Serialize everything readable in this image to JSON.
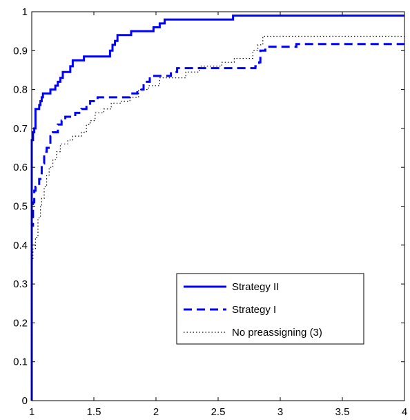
{
  "chart_data": {
    "type": "line",
    "title": "",
    "xlabel": "",
    "ylabel": "",
    "xlim": [
      1,
      4
    ],
    "ylim": [
      0,
      1
    ],
    "grid": false,
    "legend_position": "bottom-right",
    "x_ticks": [
      "1",
      "1.5",
      "2",
      "2.5",
      "3",
      "3.5",
      "4"
    ],
    "y_ticks": [
      "0",
      "0.1",
      "0.2",
      "0.3",
      "0.4",
      "0.5",
      "0.6",
      "0.7",
      "0.8",
      "0.9",
      "1"
    ],
    "series": [
      {
        "name": "Strategy II",
        "color": "#0000ff",
        "style": "solid",
        "points": [
          [
            1.0,
            0.0
          ],
          [
            1.0,
            0.67
          ],
          [
            1.01,
            0.67
          ],
          [
            1.01,
            0.69
          ],
          [
            1.02,
            0.69
          ],
          [
            1.02,
            0.7
          ],
          [
            1.03,
            0.7
          ],
          [
            1.03,
            0.75
          ],
          [
            1.06,
            0.75
          ],
          [
            1.06,
            0.76
          ],
          [
            1.07,
            0.76
          ],
          [
            1.07,
            0.77
          ],
          [
            1.08,
            0.77
          ],
          [
            1.08,
            0.78
          ],
          [
            1.09,
            0.78
          ],
          [
            1.09,
            0.79
          ],
          [
            1.15,
            0.79
          ],
          [
            1.15,
            0.8
          ],
          [
            1.19,
            0.8
          ],
          [
            1.19,
            0.81
          ],
          [
            1.21,
            0.81
          ],
          [
            1.21,
            0.82
          ],
          [
            1.23,
            0.82
          ],
          [
            1.23,
            0.83
          ],
          [
            1.25,
            0.83
          ],
          [
            1.25,
            0.845
          ],
          [
            1.31,
            0.845
          ],
          [
            1.31,
            0.86
          ],
          [
            1.33,
            0.86
          ],
          [
            1.33,
            0.875
          ],
          [
            1.42,
            0.875
          ],
          [
            1.42,
            0.885
          ],
          [
            1.63,
            0.885
          ],
          [
            1.63,
            0.9
          ],
          [
            1.65,
            0.9
          ],
          [
            1.65,
            0.915
          ],
          [
            1.67,
            0.915
          ],
          [
            1.67,
            0.925
          ],
          [
            1.69,
            0.925
          ],
          [
            1.69,
            0.94
          ],
          [
            1.8,
            0.94
          ],
          [
            1.8,
            0.95
          ],
          [
            1.98,
            0.95
          ],
          [
            1.98,
            0.96
          ],
          [
            2.03,
            0.96
          ],
          [
            2.03,
            0.97
          ],
          [
            2.07,
            0.97
          ],
          [
            2.07,
            0.98
          ],
          [
            2.62,
            0.98
          ],
          [
            2.62,
            0.99
          ],
          [
            4.0,
            0.99
          ]
        ]
      },
      {
        "name": "Strategy I",
        "color": "#0000ff",
        "style": "dashed",
        "points": [
          [
            1.0,
            0.0
          ],
          [
            1.0,
            0.45
          ],
          [
            1.01,
            0.45
          ],
          [
            1.01,
            0.51
          ],
          [
            1.02,
            0.51
          ],
          [
            1.02,
            0.54
          ],
          [
            1.03,
            0.54
          ],
          [
            1.03,
            0.55
          ],
          [
            1.06,
            0.55
          ],
          [
            1.06,
            0.57
          ],
          [
            1.08,
            0.57
          ],
          [
            1.08,
            0.61
          ],
          [
            1.1,
            0.61
          ],
          [
            1.1,
            0.64
          ],
          [
            1.12,
            0.64
          ],
          [
            1.12,
            0.65
          ],
          [
            1.15,
            0.65
          ],
          [
            1.15,
            0.68
          ],
          [
            1.17,
            0.68
          ],
          [
            1.17,
            0.69
          ],
          [
            1.21,
            0.69
          ],
          [
            1.21,
            0.71
          ],
          [
            1.24,
            0.71
          ],
          [
            1.24,
            0.72
          ],
          [
            1.27,
            0.72
          ],
          [
            1.27,
            0.73
          ],
          [
            1.35,
            0.73
          ],
          [
            1.35,
            0.74
          ],
          [
            1.4,
            0.74
          ],
          [
            1.4,
            0.75
          ],
          [
            1.44,
            0.75
          ],
          [
            1.44,
            0.76
          ],
          [
            1.47,
            0.76
          ],
          [
            1.47,
            0.77
          ],
          [
            1.53,
            0.77
          ],
          [
            1.53,
            0.78
          ],
          [
            1.79,
            0.78
          ],
          [
            1.79,
            0.79
          ],
          [
            1.85,
            0.79
          ],
          [
            1.85,
            0.8
          ],
          [
            1.9,
            0.8
          ],
          [
            1.9,
            0.82
          ],
          [
            1.95,
            0.82
          ],
          [
            1.95,
            0.835
          ],
          [
            2.12,
            0.835
          ],
          [
            2.12,
            0.845
          ],
          [
            2.17,
            0.845
          ],
          [
            2.17,
            0.855
          ],
          [
            2.8,
            0.855
          ],
          [
            2.8,
            0.86
          ],
          [
            2.83,
            0.86
          ],
          [
            2.83,
            0.87
          ],
          [
            2.84,
            0.87
          ],
          [
            2.84,
            0.9
          ],
          [
            2.88,
            0.9
          ],
          [
            2.88,
            0.91
          ],
          [
            3.13,
            0.91
          ],
          [
            3.13,
            0.917
          ],
          [
            4.0,
            0.917
          ]
        ]
      },
      {
        "name": "No preassigning (3)",
        "color": "#000000",
        "style": "dotted",
        "points": [
          [
            1.0,
            0.0
          ],
          [
            1.0,
            0.36
          ],
          [
            1.01,
            0.36
          ],
          [
            1.01,
            0.39
          ],
          [
            1.03,
            0.39
          ],
          [
            1.03,
            0.42
          ],
          [
            1.05,
            0.42
          ],
          [
            1.05,
            0.47
          ],
          [
            1.07,
            0.47
          ],
          [
            1.07,
            0.5
          ],
          [
            1.08,
            0.5
          ],
          [
            1.08,
            0.52
          ],
          [
            1.1,
            0.52
          ],
          [
            1.1,
            0.55
          ],
          [
            1.12,
            0.55
          ],
          [
            1.12,
            0.58
          ],
          [
            1.14,
            0.58
          ],
          [
            1.14,
            0.6
          ],
          [
            1.17,
            0.6
          ],
          [
            1.17,
            0.62
          ],
          [
            1.2,
            0.62
          ],
          [
            1.2,
            0.64
          ],
          [
            1.23,
            0.64
          ],
          [
            1.23,
            0.66
          ],
          [
            1.29,
            0.66
          ],
          [
            1.29,
            0.67
          ],
          [
            1.33,
            0.67
          ],
          [
            1.33,
            0.68
          ],
          [
            1.4,
            0.68
          ],
          [
            1.4,
            0.69
          ],
          [
            1.44,
            0.69
          ],
          [
            1.44,
            0.71
          ],
          [
            1.47,
            0.71
          ],
          [
            1.47,
            0.72
          ],
          [
            1.51,
            0.72
          ],
          [
            1.51,
            0.74
          ],
          [
            1.58,
            0.74
          ],
          [
            1.58,
            0.75
          ],
          [
            1.64,
            0.75
          ],
          [
            1.64,
            0.765
          ],
          [
            1.72,
            0.765
          ],
          [
            1.72,
            0.77
          ],
          [
            1.79,
            0.77
          ],
          [
            1.79,
            0.78
          ],
          [
            1.86,
            0.78
          ],
          [
            1.86,
            0.8
          ],
          [
            1.94,
            0.8
          ],
          [
            1.94,
            0.81
          ],
          [
            2.03,
            0.81
          ],
          [
            2.03,
            0.83
          ],
          [
            2.24,
            0.83
          ],
          [
            2.24,
            0.845
          ],
          [
            2.35,
            0.845
          ],
          [
            2.35,
            0.86
          ],
          [
            2.53,
            0.86
          ],
          [
            2.53,
            0.87
          ],
          [
            2.63,
            0.87
          ],
          [
            2.63,
            0.88
          ],
          [
            2.78,
            0.88
          ],
          [
            2.78,
            0.9
          ],
          [
            2.82,
            0.9
          ],
          [
            2.82,
            0.915
          ],
          [
            2.86,
            0.915
          ],
          [
            2.86,
            0.937
          ],
          [
            4.0,
            0.937
          ]
        ]
      }
    ]
  }
}
